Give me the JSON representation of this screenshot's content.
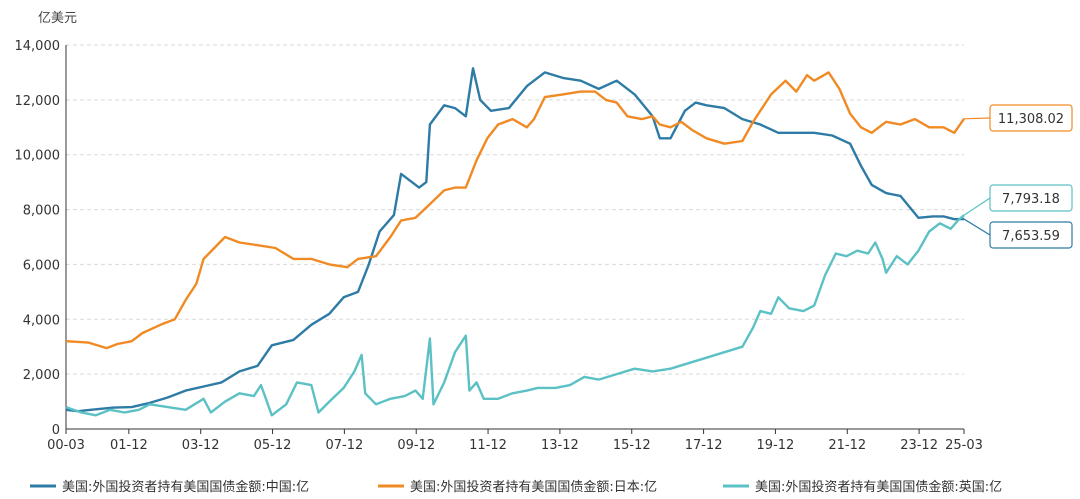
{
  "chart_data": {
    "type": "line",
    "ylabel": "亿美元",
    "ylim": [
      0,
      14000
    ],
    "yticks": [
      0,
      2000,
      4000,
      6000,
      8000,
      10000,
      12000,
      14000
    ],
    "ytick_labels": [
      "0",
      "2,000",
      "4,000",
      "6,000",
      "8,000",
      "10,000",
      "12,000",
      "14,000"
    ],
    "xlim": [
      2000.17,
      2025.17
    ],
    "xticks": [
      2000.17,
      2001.92,
      2003.92,
      2005.92,
      2007.92,
      2009.92,
      2011.92,
      2013.92,
      2015.92,
      2017.92,
      2019.92,
      2021.92,
      2023.92,
      2025.17
    ],
    "xtick_labels": [
      "00-03",
      "01-12",
      "03-12",
      "05-12",
      "07-12",
      "09-12",
      "11-12",
      "13-12",
      "15-12",
      "17-12",
      "19-12",
      "21-12",
      "23-12",
      "25-03"
    ],
    "grid": "horizontal dashed",
    "legend_position": "bottom",
    "series": [
      {
        "name": "美国:外国投资者持有美国国债金额:中国:亿",
        "color": "#2e7ba5",
        "end_label": "7,653.59",
        "points": [
          [
            2000.17,
            700
          ],
          [
            2000.5,
            650
          ],
          [
            2001.0,
            720
          ],
          [
            2001.5,
            780
          ],
          [
            2002.0,
            800
          ],
          [
            2002.5,
            950
          ],
          [
            2003.0,
            1150
          ],
          [
            2003.5,
            1400
          ],
          [
            2004.0,
            1550
          ],
          [
            2004.5,
            1700
          ],
          [
            2005.0,
            2100
          ],
          [
            2005.5,
            2300
          ],
          [
            2005.9,
            3050
          ],
          [
            2006.5,
            3250
          ],
          [
            2007.0,
            3800
          ],
          [
            2007.5,
            4200
          ],
          [
            2007.9,
            4800
          ],
          [
            2008.3,
            5000
          ],
          [
            2008.6,
            6000
          ],
          [
            2008.9,
            7200
          ],
          [
            2009.3,
            7800
          ],
          [
            2009.5,
            9300
          ],
          [
            2009.8,
            9000
          ],
          [
            2010.0,
            8800
          ],
          [
            2010.2,
            9000
          ],
          [
            2010.3,
            11100
          ],
          [
            2010.7,
            11800
          ],
          [
            2011.0,
            11700
          ],
          [
            2011.3,
            11400
          ],
          [
            2011.5,
            13150
          ],
          [
            2011.7,
            12000
          ],
          [
            2012.0,
            11600
          ],
          [
            2012.5,
            11700
          ],
          [
            2013.0,
            12500
          ],
          [
            2013.5,
            13000
          ],
          [
            2014.0,
            12800
          ],
          [
            2014.5,
            12700
          ],
          [
            2015.0,
            12400
          ],
          [
            2015.5,
            12700
          ],
          [
            2016.0,
            12200
          ],
          [
            2016.5,
            11400
          ],
          [
            2016.7,
            10600
          ],
          [
            2017.0,
            10600
          ],
          [
            2017.4,
            11600
          ],
          [
            2017.7,
            11900
          ],
          [
            2018.0,
            11800
          ],
          [
            2018.5,
            11700
          ],
          [
            2019.0,
            11300
          ],
          [
            2019.5,
            11100
          ],
          [
            2020.0,
            10800
          ],
          [
            2020.5,
            10800
          ],
          [
            2021.0,
            10800
          ],
          [
            2021.5,
            10700
          ],
          [
            2022.0,
            10400
          ],
          [
            2022.3,
            9600
          ],
          [
            2022.6,
            8900
          ],
          [
            2023.0,
            8600
          ],
          [
            2023.4,
            8500
          ],
          [
            2023.9,
            7700
          ],
          [
            2024.3,
            7750
          ],
          [
            2024.6,
            7750
          ],
          [
            2024.9,
            7650
          ],
          [
            2025.17,
            7653.59
          ]
        ]
      },
      {
        "name": "美国:外国投资者持有美国国债金额:日本:亿",
        "color": "#f08a24",
        "end_label": "11,308.02",
        "points": [
          [
            2000.17,
            3200
          ],
          [
            2000.8,
            3150
          ],
          [
            2001.3,
            2950
          ],
          [
            2001.6,
            3100
          ],
          [
            2002.0,
            3200
          ],
          [
            2002.3,
            3500
          ],
          [
            2002.8,
            3800
          ],
          [
            2003.2,
            4000
          ],
          [
            2003.5,
            4700
          ],
          [
            2003.8,
            5300
          ],
          [
            2004.0,
            6200
          ],
          [
            2004.3,
            6600
          ],
          [
            2004.6,
            7000
          ],
          [
            2005.0,
            6800
          ],
          [
            2005.5,
            6700
          ],
          [
            2006.0,
            6600
          ],
          [
            2006.5,
            6200
          ],
          [
            2007.0,
            6200
          ],
          [
            2007.5,
            6000
          ],
          [
            2008.0,
            5900
          ],
          [
            2008.3,
            6200
          ],
          [
            2008.8,
            6300
          ],
          [
            2009.2,
            7000
          ],
          [
            2009.5,
            7600
          ],
          [
            2009.9,
            7700
          ],
          [
            2010.3,
            8200
          ],
          [
            2010.7,
            8700
          ],
          [
            2011.0,
            8800
          ],
          [
            2011.3,
            8800
          ],
          [
            2011.6,
            9800
          ],
          [
            2011.9,
            10600
          ],
          [
            2012.2,
            11100
          ],
          [
            2012.6,
            11300
          ],
          [
            2013.0,
            11000
          ],
          [
            2013.2,
            11300
          ],
          [
            2013.5,
            12100
          ],
          [
            2014.0,
            12200
          ],
          [
            2014.5,
            12300
          ],
          [
            2014.9,
            12300
          ],
          [
            2015.2,
            12000
          ],
          [
            2015.5,
            11900
          ],
          [
            2015.8,
            11400
          ],
          [
            2016.2,
            11300
          ],
          [
            2016.5,
            11400
          ],
          [
            2016.7,
            11100
          ],
          [
            2017.0,
            11000
          ],
          [
            2017.3,
            11200
          ],
          [
            2017.6,
            10900
          ],
          [
            2018.0,
            10600
          ],
          [
            2018.5,
            10400
          ],
          [
            2019.0,
            10500
          ],
          [
            2019.3,
            11200
          ],
          [
            2019.8,
            12200
          ],
          [
            2020.2,
            12700
          ],
          [
            2020.5,
            12300
          ],
          [
            2020.8,
            12900
          ],
          [
            2021.0,
            12700
          ],
          [
            2021.4,
            13000
          ],
          [
            2021.7,
            12400
          ],
          [
            2022.0,
            11500
          ],
          [
            2022.3,
            11000
          ],
          [
            2022.6,
            10800
          ],
          [
            2023.0,
            11200
          ],
          [
            2023.4,
            11100
          ],
          [
            2023.8,
            11300
          ],
          [
            2024.2,
            11000
          ],
          [
            2024.6,
            11000
          ],
          [
            2024.9,
            10800
          ],
          [
            2025.17,
            11308.02
          ]
        ]
      },
      {
        "name": "美国:外国投资者持有美国国债金额:英国:亿",
        "color": "#5cc1c4",
        "end_label": "7,793.18",
        "points": [
          [
            2000.17,
            800
          ],
          [
            2000.6,
            600
          ],
          [
            2001.0,
            500
          ],
          [
            2001.4,
            700
          ],
          [
            2001.8,
            600
          ],
          [
            2002.2,
            700
          ],
          [
            2002.5,
            900
          ],
          [
            2003.0,
            800
          ],
          [
            2003.5,
            700
          ],
          [
            2004.0,
            1100
          ],
          [
            2004.2,
            600
          ],
          [
            2004.6,
            1000
          ],
          [
            2005.0,
            1300
          ],
          [
            2005.4,
            1200
          ],
          [
            2005.6,
            1600
          ],
          [
            2005.9,
            500
          ],
          [
            2006.3,
            900
          ],
          [
            2006.6,
            1700
          ],
          [
            2007.0,
            1600
          ],
          [
            2007.2,
            600
          ],
          [
            2007.5,
            1000
          ],
          [
            2007.9,
            1500
          ],
          [
            2008.2,
            2100
          ],
          [
            2008.4,
            2700
          ],
          [
            2008.5,
            1300
          ],
          [
            2008.8,
            900
          ],
          [
            2009.2,
            1100
          ],
          [
            2009.6,
            1200
          ],
          [
            2009.9,
            1400
          ],
          [
            2010.1,
            1100
          ],
          [
            2010.3,
            3300
          ],
          [
            2010.4,
            900
          ],
          [
            2010.7,
            1700
          ],
          [
            2011.0,
            2800
          ],
          [
            2011.3,
            3400
          ],
          [
            2011.4,
            1400
          ],
          [
            2011.6,
            1700
          ],
          [
            2011.8,
            1100
          ],
          [
            2012.2,
            1100
          ],
          [
            2012.6,
            1300
          ],
          [
            2013.0,
            1400
          ],
          [
            2013.3,
            1500
          ],
          [
            2013.8,
            1500
          ],
          [
            2014.2,
            1600
          ],
          [
            2014.6,
            1900
          ],
          [
            2015.0,
            1800
          ],
          [
            2015.5,
            2000
          ],
          [
            2016.0,
            2200
          ],
          [
            2016.5,
            2100
          ],
          [
            2017.0,
            2200
          ],
          [
            2017.5,
            2400
          ],
          [
            2018.0,
            2600
          ],
          [
            2018.5,
            2800
          ],
          [
            2019.0,
            3000
          ],
          [
            2019.3,
            3700
          ],
          [
            2019.5,
            4300
          ],
          [
            2019.8,
            4200
          ],
          [
            2020.0,
            4800
          ],
          [
            2020.3,
            4400
          ],
          [
            2020.7,
            4300
          ],
          [
            2021.0,
            4500
          ],
          [
            2021.3,
            5600
          ],
          [
            2021.6,
            6400
          ],
          [
            2021.9,
            6300
          ],
          [
            2022.2,
            6500
          ],
          [
            2022.5,
            6400
          ],
          [
            2022.7,
            6800
          ],
          [
            2022.9,
            6200
          ],
          [
            2023.0,
            5700
          ],
          [
            2023.3,
            6300
          ],
          [
            2023.6,
            6000
          ],
          [
            2023.9,
            6500
          ],
          [
            2024.2,
            7200
          ],
          [
            2024.5,
            7500
          ],
          [
            2024.8,
            7300
          ],
          [
            2025.0,
            7600
          ],
          [
            2025.17,
            7793.18
          ]
        ]
      }
    ]
  }
}
